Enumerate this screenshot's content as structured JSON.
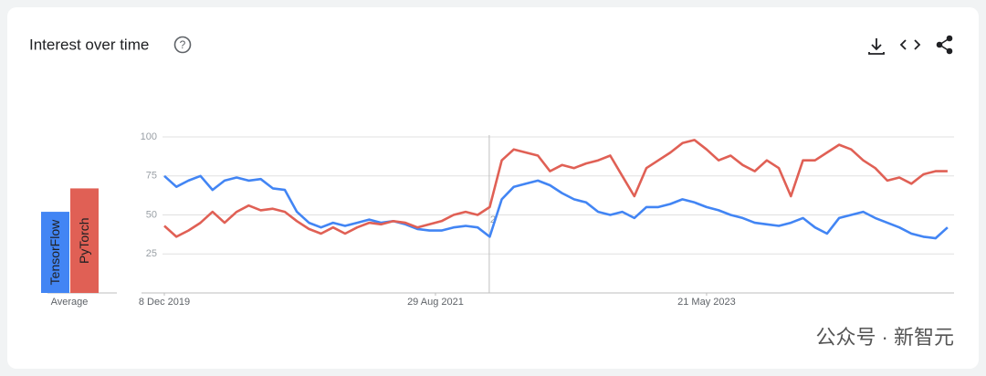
{
  "chart_data": {
    "type": "line",
    "title": "Interest over time",
    "average_label": "Average",
    "x": [
      "2019-12-08",
      "2020-01-05",
      "2020-02-02",
      "2020-03-01",
      "2020-03-29",
      "2020-04-26",
      "2020-05-24",
      "2020-06-21",
      "2020-07-19",
      "2020-08-16",
      "2020-09-13",
      "2020-10-11",
      "2020-11-08",
      "2020-12-06",
      "2021-01-03",
      "2021-01-31",
      "2021-02-28",
      "2021-03-28",
      "2021-04-25",
      "2021-05-23",
      "2021-06-20",
      "2021-07-18",
      "2021-08-15",
      "2021-09-12",
      "2021-10-10",
      "2021-11-07",
      "2021-12-05",
      "2022-01-02",
      "2022-01-30",
      "2022-02-27",
      "2022-03-27",
      "2022-04-24",
      "2022-05-22",
      "2022-06-19",
      "2022-07-17",
      "2022-08-14",
      "2022-09-11",
      "2022-10-09",
      "2022-11-06",
      "2022-12-04",
      "2023-01-01",
      "2023-01-29",
      "2023-02-26",
      "2023-03-26",
      "2023-04-23",
      "2023-05-21",
      "2023-06-18",
      "2023-07-16",
      "2023-08-13",
      "2023-09-10",
      "2023-10-08",
      "2023-11-05",
      "2023-12-03",
      "2023-12-31",
      "2024-01-28",
      "2024-02-25",
      "2024-03-24",
      "2024-04-21",
      "2024-05-19",
      "2024-06-16",
      "2024-07-14",
      "2024-08-11",
      "2024-09-08",
      "2024-10-06",
      "2024-11-03",
      "2024-12-01"
    ],
    "series": [
      {
        "name": "TensorFlow",
        "color": "#4285f4",
        "average": 52,
        "values": [
          75,
          68,
          72,
          75,
          66,
          72,
          74,
          72,
          73,
          67,
          66,
          52,
          45,
          42,
          45,
          43,
          45,
          47,
          45,
          46,
          44,
          41,
          40,
          40,
          42,
          43,
          42,
          36,
          60,
          68,
          70,
          72,
          69,
          64,
          60,
          58,
          52,
          50,
          52,
          48,
          55,
          55,
          57,
          60,
          58,
          55,
          53,
          50,
          48,
          45,
          44,
          43,
          45,
          48,
          42,
          38,
          48,
          50,
          52,
          48,
          45,
          42,
          38,
          36,
          35,
          42
        ]
      },
      {
        "name": "PyTorch",
        "color": "#e06055",
        "average": 67,
        "values": [
          43,
          36,
          40,
          45,
          52,
          45,
          52,
          56,
          53,
          54,
          52,
          46,
          41,
          38,
          42,
          38,
          42,
          45,
          44,
          46,
          45,
          42,
          44,
          46,
          50,
          52,
          50,
          55,
          85,
          92,
          90,
          88,
          78,
          82,
          80,
          83,
          85,
          88,
          75,
          62,
          80,
          85,
          90,
          96,
          98,
          92,
          85,
          88,
          82,
          78,
          85,
          80,
          62,
          85,
          85,
          90,
          95,
          92,
          85,
          80,
          72,
          74,
          70,
          76,
          78,
          78
        ]
      }
    ],
    "xlim": [
      "2019-10-16",
      "2024-12-16"
    ],
    "xticks": [
      {
        "value": "2019-12-08",
        "label": "8 Dec 2019"
      },
      {
        "value": "2021-08-29",
        "label": "29 Aug 2021"
      },
      {
        "value": "2023-05-21",
        "label": "21 May 2023"
      }
    ],
    "ylim": [
      0,
      100
    ],
    "yticks": [
      25,
      50,
      75,
      100
    ],
    "grid": true,
    "annotation": {
      "x": "2022-01-01",
      "label": "2"
    }
  },
  "watermark": "公众号 · 新智元"
}
